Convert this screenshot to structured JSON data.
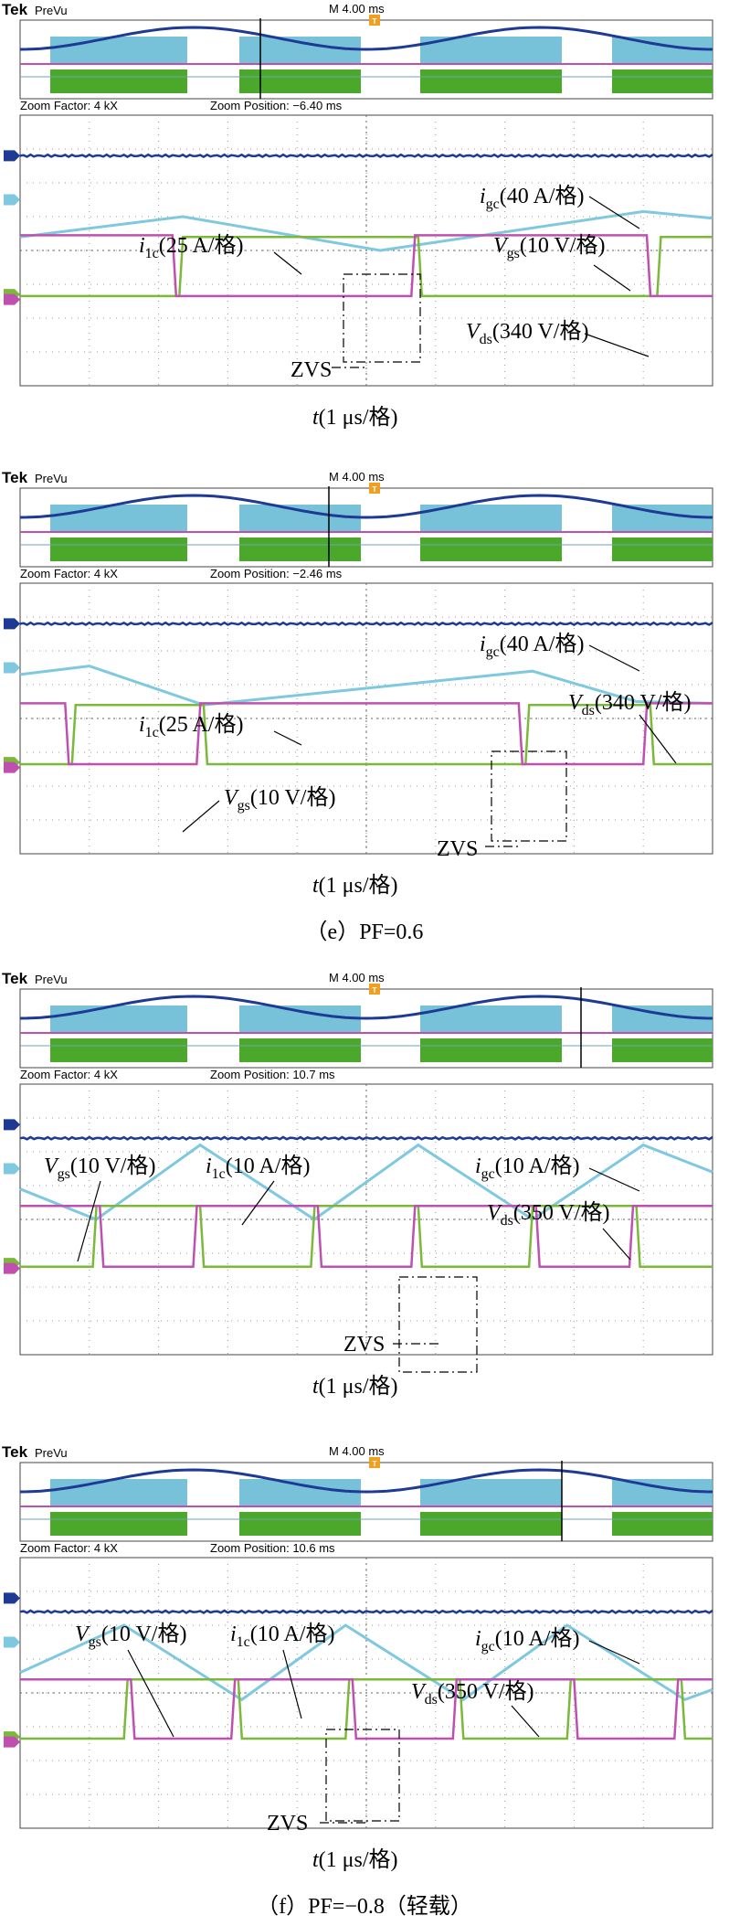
{
  "chart_data": [
    {
      "type": "line",
      "brand": "Tek",
      "brand_sub": "PreVu",
      "timebase": "M 4.00 ms",
      "zoom_factor": "Zoom Factor: 4 kX",
      "zoom_position": "Zoom Position: −6.40 ms",
      "xlabel_main": "t",
      "xlabel_unit": "(1 μs/格)",
      "caption": "",
      "annotations": [
        {
          "base": "i",
          "sub": "gc",
          "scale": "(40 A/格)"
        },
        {
          "base": "i",
          "sub": "1c",
          "scale": "(25 A/格)"
        },
        {
          "base": "V",
          "sub": "gs",
          "scale": "(10 V/格)"
        },
        {
          "base": "V",
          "sub": "ds",
          "scale": "(340 V/格)"
        }
      ],
      "zvs_label": "ZVS",
      "grid": true,
      "x_divisions": 10,
      "y_divisions": 8,
      "series": [
        {
          "name": "igc",
          "color": "#1e3a94",
          "level_div": 1.2
        },
        {
          "name": "i1c",
          "color": "#7ec8e0",
          "points": [
            [
              0,
              3.6
            ],
            [
              2.35,
              3.0
            ],
            [
              5.2,
              4.0
            ],
            [
              9.0,
              2.85
            ],
            [
              10,
              3.05
            ]
          ]
        },
        {
          "name": "Vgs",
          "color": "#7cb83a",
          "high_div": 3.6,
          "low_div": 5.35,
          "edges_div": [
            2.3,
            5.75,
            9.2
          ]
        },
        {
          "name": "Vds",
          "color": "#c050b0",
          "high_div": 3.55,
          "low_div": 5.35,
          "edges_div": [
            2.2,
            5.65,
            9.05
          ]
        }
      ]
    },
    {
      "type": "line",
      "brand": "Tek",
      "brand_sub": "PreVu",
      "timebase": "M 4.00 ms",
      "zoom_factor": "Zoom Factor: 4 kX",
      "zoom_position": "Zoom Position: −2.46 ms",
      "xlabel_main": "t",
      "xlabel_unit": "(1 μs/格)",
      "caption": "（e）PF=0.6",
      "annotations": [
        {
          "base": "i",
          "sub": "gc",
          "scale": "(40 A/格)"
        },
        {
          "base": "i",
          "sub": "1c",
          "scale": "(25 A/格)"
        },
        {
          "base": "V",
          "sub": "ds",
          "scale": "(340 V/格)"
        },
        {
          "base": "V",
          "sub": "gs",
          "scale": "(10 V/格)"
        }
      ],
      "zvs_label": "ZVS",
      "grid": true,
      "x_divisions": 10,
      "y_divisions": 8,
      "series": [
        {
          "name": "igc",
          "color": "#1e3a94",
          "level_div": 1.2
        },
        {
          "name": "i1c",
          "color": "#7ec8e0",
          "points": [
            [
              0,
              2.7
            ],
            [
              1.0,
              2.45
            ],
            [
              2.65,
              3.6
            ],
            [
              7.4,
              2.6
            ],
            [
              8.9,
              3.5
            ],
            [
              10,
              3.55
            ]
          ]
        },
        {
          "name": "Vgs",
          "color": "#7cb83a",
          "high_div": 3.6,
          "low_div": 5.35,
          "edges_div": [
            0.75,
            2.65,
            7.3,
            9.1
          ]
        },
        {
          "name": "Vds",
          "color": "#c050b0",
          "high_div": 3.55,
          "low_div": 5.35,
          "edges_div": [
            0.65,
            2.55,
            7.2,
            9.0
          ]
        }
      ]
    },
    {
      "type": "line",
      "brand": "Tek",
      "brand_sub": "PreVu",
      "timebase": "M 4.00 ms",
      "zoom_factor": "Zoom Factor: 4 kX",
      "zoom_position": "Zoom Position: 10.7 ms",
      "xlabel_main": "t",
      "xlabel_unit": "(1 μs/格)",
      "caption": "",
      "annotations": [
        {
          "base": "V",
          "sub": "gs",
          "scale": "(10 V/格)"
        },
        {
          "base": "i",
          "sub": "1c",
          "scale": "(10 A/格)"
        },
        {
          "base": "i",
          "sub": "gc",
          "scale": "(10 A/格)"
        },
        {
          "base": "V",
          "sub": "ds",
          "scale": "(350 V/格)"
        }
      ],
      "zvs_label": "ZVS",
      "grid": true,
      "x_divisions": 10,
      "y_divisions": 8,
      "series": [
        {
          "name": "igc",
          "color": "#1e3a94",
          "level_div": 1.6
        },
        {
          "name": "i1c",
          "color": "#7ec8e0",
          "points": [
            [
              0,
              3.1
            ],
            [
              1.1,
              4.0
            ],
            [
              2.6,
              1.8
            ],
            [
              4.25,
              4.0
            ],
            [
              5.75,
              1.8
            ],
            [
              7.4,
              4.0
            ],
            [
              9.0,
              1.8
            ],
            [
              10,
              2.6
            ]
          ]
        },
        {
          "name": "Vgs",
          "color": "#7cb83a",
          "high_div": 3.6,
          "low_div": 5.4,
          "edges_div": [
            1.05,
            2.6,
            4.2,
            5.75,
            7.35,
            8.9
          ]
        },
        {
          "name": "Vds",
          "color": "#c050b0",
          "high_div": 3.6,
          "low_div": 5.4,
          "edges_div": [
            1.15,
            2.5,
            4.3,
            5.65,
            7.45,
            8.8
          ]
        }
      ]
    },
    {
      "type": "line",
      "brand": "Tek",
      "brand_sub": "PreVu",
      "timebase": "M 4.00 ms",
      "zoom_factor": "Zoom Factor: 4 kX",
      "zoom_position": "Zoom Position: 10.6 ms",
      "xlabel_main": "t",
      "xlabel_unit": "(1 μs/格)",
      "caption": "（f）PF=−0.8（轻载）",
      "annotations": [
        {
          "base": "V",
          "sub": "gs",
          "scale": "(10 V/格)"
        },
        {
          "base": "i",
          "sub": "1c",
          "scale": "(10 A/格)"
        },
        {
          "base": "i",
          "sub": "gc",
          "scale": "(10 A/格)"
        },
        {
          "base": "V",
          "sub": "ds",
          "scale": "(350 V/格)"
        }
      ],
      "zvs_label": "ZVS",
      "grid": true,
      "x_divisions": 10,
      "y_divisions": 8,
      "series": [
        {
          "name": "igc",
          "color": "#1e3a94",
          "level_div": 1.6
        },
        {
          "name": "i1c",
          "color": "#7ec8e0",
          "points": [
            [
              0,
              3.4
            ],
            [
              1.5,
              2.0
            ],
            [
              3.2,
              4.2
            ],
            [
              4.7,
              2.0
            ],
            [
              6.4,
              4.2
            ],
            [
              7.9,
              2.0
            ],
            [
              9.6,
              4.2
            ],
            [
              10,
              3.9
            ]
          ]
        },
        {
          "name": "Vgs",
          "color": "#7cb83a",
          "high_div": 3.6,
          "low_div": 5.35,
          "edges_div": [
            1.5,
            3.15,
            4.7,
            6.35,
            7.9,
            9.55
          ]
        },
        {
          "name": "Vds",
          "color": "#c050b0",
          "high_div": 3.6,
          "low_div": 5.35,
          "edges_div": [
            1.6,
            3.05,
            4.8,
            6.25,
            8.0,
            9.45
          ]
        }
      ]
    }
  ]
}
